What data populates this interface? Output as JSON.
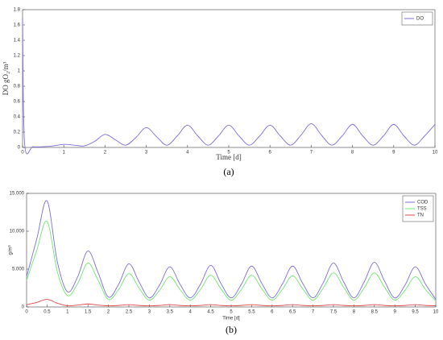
{
  "chart_data": [
    {
      "type": "line",
      "title": "(a)",
      "x_label": "Time [d]",
      "y_label": "DO gO₂/m³",
      "x": [
        0,
        0.05,
        0.25,
        0.5,
        0.75,
        1,
        1.25,
        1.5,
        1.75,
        2,
        2.25,
        2.5,
        2.75,
        3,
        3.25,
        3.5,
        3.75,
        4,
        4.25,
        4.5,
        4.75,
        5,
        5.25,
        5.5,
        5.75,
        6,
        6.25,
        6.5,
        6.75,
        7,
        7.25,
        7.5,
        7.75,
        8,
        8.25,
        8.5,
        8.75,
        9,
        9.25,
        9.5,
        9.75,
        10
      ],
      "series": [
        {
          "name": "DO",
          "color": "#7b6ee0",
          "values": [
            1.7,
            0.05,
            0.01,
            0.01,
            0.02,
            0.04,
            0.03,
            0.02,
            0.08,
            0.17,
            0.1,
            0.03,
            0.13,
            0.26,
            0.14,
            0.03,
            0.15,
            0.29,
            0.15,
            0.03,
            0.15,
            0.29,
            0.15,
            0.03,
            0.15,
            0.29,
            0.15,
            0.03,
            0.16,
            0.31,
            0.16,
            0.03,
            0.15,
            0.3,
            0.15,
            0.03,
            0.15,
            0.3,
            0.15,
            0.03,
            0.15,
            0.3
          ]
        }
      ],
      "xlim": [
        0,
        10
      ],
      "xticks": [
        0,
        1,
        2,
        3,
        4,
        5,
        6,
        7,
        8,
        9,
        10
      ],
      "ylim": [
        0,
        1.8
      ],
      "yticks": [
        0,
        0.2,
        0.4,
        0.6,
        0.8,
        1,
        1.2,
        1.4,
        1.6,
        1.8
      ],
      "legend": "upper right"
    },
    {
      "type": "line",
      "title": "(b)",
      "x_label": "Time [d]",
      "y_label": "g/m³",
      "x": [
        0,
        0.25,
        0.5,
        0.75,
        1,
        1.25,
        1.5,
        1.75,
        2,
        2.25,
        2.5,
        2.75,
        3,
        3.25,
        3.5,
        3.75,
        4,
        4.25,
        4.5,
        4.75,
        5,
        5.25,
        5.5,
        5.75,
        6,
        6.25,
        6.5,
        6.75,
        7,
        7.25,
        7.5,
        7.75,
        8,
        8.25,
        8.5,
        8.75,
        9,
        9.25,
        9.5,
        9.75,
        10
      ],
      "series": [
        {
          "name": "COD",
          "color": "#7b6ee0",
          "values": [
            4000,
            9000,
            14000,
            6000,
            2000,
            4000,
            7400,
            4500,
            1300,
            3000,
            5700,
            3300,
            1200,
            2900,
            5300,
            3000,
            1200,
            3000,
            5500,
            3100,
            1200,
            3000,
            5400,
            3100,
            1200,
            3000,
            5400,
            3100,
            1200,
            3200,
            5800,
            3300,
            1200,
            3300,
            5900,
            3400,
            1200,
            2900,
            5300,
            3000,
            1000
          ]
        },
        {
          "name": "TSS",
          "color": "#6ee86e",
          "values": [
            3500,
            7500,
            11300,
            4700,
            1500,
            3100,
            5800,
            3500,
            1000,
            2300,
            4400,
            2500,
            900,
            2200,
            4000,
            2300,
            900,
            2300,
            4200,
            2400,
            900,
            2300,
            4200,
            2400,
            900,
            2300,
            4100,
            2400,
            900,
            2500,
            4500,
            2600,
            900,
            2500,
            4500,
            2600,
            900,
            2200,
            4000,
            2300,
            800
          ]
        },
        {
          "name": "TN",
          "color": "#e04848",
          "values": [
            300,
            600,
            1000,
            500,
            150,
            250,
            400,
            250,
            150,
            200,
            300,
            200,
            150,
            200,
            300,
            200,
            150,
            200,
            300,
            200,
            150,
            200,
            300,
            200,
            150,
            200,
            300,
            200,
            150,
            200,
            300,
            200,
            150,
            200,
            300,
            200,
            150,
            200,
            300,
            200,
            150
          ]
        }
      ],
      "xlim": [
        0,
        10
      ],
      "xticks": [
        0,
        0.5,
        1,
        1.5,
        2,
        2.5,
        3,
        3.5,
        4,
        4.5,
        5,
        5.5,
        6,
        6.5,
        7,
        7.5,
        8,
        8.5,
        9,
        9.5,
        10
      ],
      "ylim": [
        0,
        15000
      ],
      "yticks": [
        0,
        {
          "value": 5000,
          "label": "5.000"
        },
        {
          "value": 10000,
          "label": "10.000"
        },
        {
          "value": 15000,
          "label": "15.000"
        }
      ],
      "legend": "upper right"
    }
  ]
}
